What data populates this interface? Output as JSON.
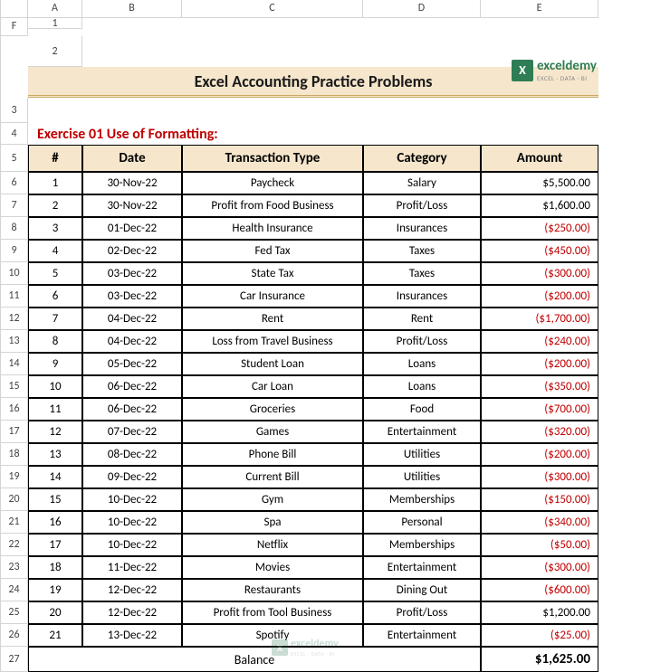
{
  "columns": [
    "A",
    "B",
    "C",
    "D",
    "E",
    "F"
  ],
  "title": "Excel Accounting Practice Problems",
  "exercise_label": "Exercise 01 Use of Formatting:",
  "headers": [
    "#",
    "Date",
    "Transaction Type",
    "Category",
    "Amount"
  ],
  "rows": [
    {
      "n": "1",
      "date": "30-Nov-22",
      "type": "Paycheck",
      "cat": "Salary",
      "amt": "$5,500.00",
      "neg": false
    },
    {
      "n": "2",
      "date": "30-Nov-22",
      "type": "Profit from Food Business",
      "cat": "Profit/Loss",
      "amt": "$1,600.00",
      "neg": false
    },
    {
      "n": "3",
      "date": "01-Dec-22",
      "type": "Health Insurance",
      "cat": "Insurances",
      "amt": "($250.00)",
      "neg": true
    },
    {
      "n": "4",
      "date": "02-Dec-22",
      "type": "Fed Tax",
      "cat": "Taxes",
      "amt": "($450.00)",
      "neg": true
    },
    {
      "n": "5",
      "date": "03-Dec-22",
      "type": "State Tax",
      "cat": "Taxes",
      "amt": "($300.00)",
      "neg": true
    },
    {
      "n": "6",
      "date": "03-Dec-22",
      "type": "Car Insurance",
      "cat": "Insurances",
      "amt": "($200.00)",
      "neg": true
    },
    {
      "n": "7",
      "date": "04-Dec-22",
      "type": "Rent",
      "cat": "Rent",
      "amt": "($1,700.00)",
      "neg": true
    },
    {
      "n": "8",
      "date": "04-Dec-22",
      "type": "Loss from Travel Business",
      "cat": "Profit/Loss",
      "amt": "($240.00)",
      "neg": true
    },
    {
      "n": "9",
      "date": "05-Dec-22",
      "type": "Student Loan",
      "cat": "Loans",
      "amt": "($200.00)",
      "neg": true
    },
    {
      "n": "10",
      "date": "06-Dec-22",
      "type": "Car Loan",
      "cat": "Loans",
      "amt": "($350.00)",
      "neg": true
    },
    {
      "n": "11",
      "date": "06-Dec-22",
      "type": "Groceries",
      "cat": "Food",
      "amt": "($700.00)",
      "neg": true
    },
    {
      "n": "12",
      "date": "07-Dec-22",
      "type": "Games",
      "cat": "Entertainment",
      "amt": "($320.00)",
      "neg": true
    },
    {
      "n": "13",
      "date": "08-Dec-22",
      "type": "Phone Bill",
      "cat": "Utilities",
      "amt": "($200.00)",
      "neg": true
    },
    {
      "n": "14",
      "date": "09-Dec-22",
      "type": "Current Bill",
      "cat": "Utilities",
      "amt": "($300.00)",
      "neg": true
    },
    {
      "n": "15",
      "date": "10-Dec-22",
      "type": "Gym",
      "cat": "Memberships",
      "amt": "($150.00)",
      "neg": true
    },
    {
      "n": "16",
      "date": "10-Dec-22",
      "type": "Spa",
      "cat": "Personal",
      "amt": "($340.00)",
      "neg": true
    },
    {
      "n": "17",
      "date": "10-Dec-22",
      "type": "Netflix",
      "cat": "Memberships",
      "amt": "($50.00)",
      "neg": true
    },
    {
      "n": "18",
      "date": "11-Dec-22",
      "type": "Movies",
      "cat": "Entertainment",
      "amt": "($300.00)",
      "neg": true
    },
    {
      "n": "19",
      "date": "12-Dec-22",
      "type": "Restaurants",
      "cat": "Dining Out",
      "amt": "($600.00)",
      "neg": true
    },
    {
      "n": "20",
      "date": "12-Dec-22",
      "type": "Profit from Tool Business",
      "cat": "Profit/Loss",
      "amt": "$1,200.00",
      "neg": false
    },
    {
      "n": "21",
      "date": "13-Dec-22",
      "type": "Spotify",
      "cat": "Entertainment",
      "amt": "($25.00)",
      "neg": true
    }
  ],
  "balance_label": "Balance",
  "balance_amount": "$1,625.00",
  "logo": {
    "brand": "exceldemy",
    "tagline": "EXCEL · DATA · BI",
    "icon": "X"
  },
  "colors": {
    "header_bg": "#f5e6cc",
    "title_underline": "#c9a860",
    "exercise_color": "#c00000",
    "neg_color": "#c00000",
    "grid_border": "#d4d4d4",
    "table_border": "#000000",
    "logo_green": "#2e7d55"
  }
}
